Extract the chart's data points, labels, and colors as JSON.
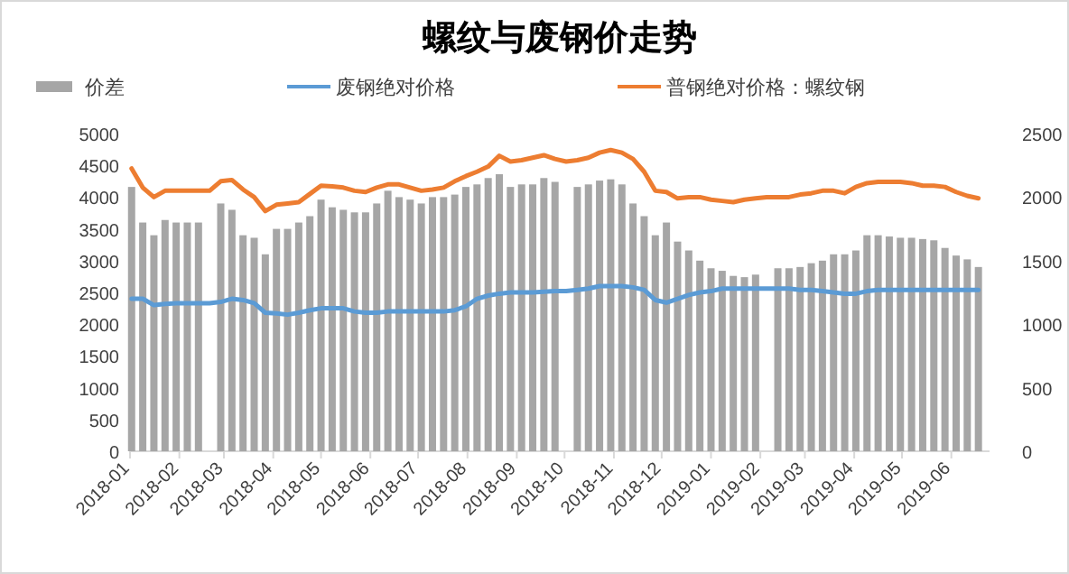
{
  "chart_data": {
    "type": "bar",
    "title": "螺纹与废钢价走势",
    "x": [
      "2018-01-02",
      "2018-01-09",
      "2018-01-16",
      "2018-01-23",
      "2018-01-30",
      "2018-02-06",
      "2018-02-13",
      "2018-02-20",
      "2018-02-27",
      "2018-03-06",
      "2018-03-13",
      "2018-03-20",
      "2018-03-27",
      "2018-04-03",
      "2018-04-10",
      "2018-04-17",
      "2018-04-24",
      "2018-05-01",
      "2018-05-08",
      "2018-05-15",
      "2018-05-22",
      "2018-05-29",
      "2018-06-05",
      "2018-06-12",
      "2018-06-19",
      "2018-06-26",
      "2018-07-03",
      "2018-07-10",
      "2018-07-17",
      "2018-07-24",
      "2018-07-31",
      "2018-08-07",
      "2018-08-14",
      "2018-08-21",
      "2018-08-28",
      "2018-09-04",
      "2018-09-11",
      "2018-09-18",
      "2018-09-25",
      "2018-10-02",
      "2018-10-09",
      "2018-10-16",
      "2018-10-23",
      "2018-10-30",
      "2018-11-06",
      "2018-11-13",
      "2018-11-20",
      "2018-11-27",
      "2018-12-04",
      "2018-12-11",
      "2018-12-18",
      "2018-12-25",
      "2019-01-01",
      "2019-01-08",
      "2019-01-15",
      "2019-01-22",
      "2019-01-29",
      "2019-02-05",
      "2019-02-12",
      "2019-02-19",
      "2019-02-26",
      "2019-03-05",
      "2019-03-12",
      "2019-03-19",
      "2019-03-26",
      "2019-04-02",
      "2019-04-09",
      "2019-04-16",
      "2019-04-23",
      "2019-04-30",
      "2019-05-07",
      "2019-05-14",
      "2019-05-21",
      "2019-05-28",
      "2019-06-04",
      "2019-06-11",
      "2019-06-18"
    ],
    "series": [
      {
        "name": "价差",
        "axis": "y2",
        "color": "#a6a6a6",
        "values": [
          2080,
          1800,
          1700,
          1820,
          1800,
          1800,
          1800,
          null,
          1950,
          1900,
          1700,
          1680,
          1550,
          1750,
          1750,
          1800,
          1850,
          1980,
          1920,
          1900,
          1880,
          1880,
          1950,
          2050,
          2000,
          1980,
          1950,
          2000,
          2000,
          2020,
          2080,
          2100,
          2150,
          2180,
          2080,
          2100,
          2100,
          2150,
          2120,
          null,
          2080,
          2100,
          2130,
          2140,
          2100,
          1950,
          1850,
          1700,
          1800,
          1650,
          1580,
          1500,
          1440,
          1420,
          1380,
          1370,
          1390,
          null,
          1440,
          1440,
          1450,
          1480,
          1500,
          1550,
          1550,
          1580,
          1700,
          1700,
          1690,
          1680,
          1680,
          1670,
          1660,
          1600,
          1540,
          1510,
          1450
        ]
      },
      {
        "name": "废钢绝对价格",
        "type": "line",
        "color": "#5b9bd5",
        "values": [
          2400,
          2400,
          2300,
          2320,
          2330,
          2330,
          2330,
          2330,
          2350,
          2400,
          2380,
          2330,
          2180,
          2170,
          2150,
          2180,
          2220,
          2250,
          2250,
          2250,
          2200,
          2180,
          2180,
          2200,
          2200,
          2200,
          2200,
          2200,
          2200,
          2220,
          2280,
          2400,
          2450,
          2480,
          2500,
          2500,
          2500,
          2510,
          2520,
          2520,
          2540,
          2560,
          2600,
          2600,
          2600,
          2580,
          2540,
          2380,
          2340,
          2400,
          2460,
          2500,
          2520,
          2560,
          2560,
          2560,
          2560,
          2560,
          2560,
          2560,
          2540,
          2540,
          2520,
          2500,
          2480,
          2480,
          2520,
          2540,
          2540,
          2540,
          2540,
          2540,
          2540,
          2540,
          2540,
          2540,
          2540
        ]
      },
      {
        "name": "普钢绝对价格：螺纹钢",
        "type": "line",
        "color": "#ed7d31",
        "values": [
          4450,
          4150,
          4000,
          4100,
          4100,
          4100,
          4100,
          4100,
          4250,
          4270,
          4120,
          4000,
          3780,
          3880,
          3900,
          3920,
          4050,
          4180,
          4170,
          4150,
          4100,
          4080,
          4150,
          4200,
          4200,
          4150,
          4100,
          4120,
          4150,
          4250,
          4330,
          4400,
          4480,
          4650,
          4560,
          4580,
          4620,
          4660,
          4600,
          4560,
          4580,
          4620,
          4700,
          4740,
          4700,
          4600,
          4400,
          4100,
          4080,
          3980,
          4000,
          4000,
          3960,
          3940,
          3920,
          3960,
          3980,
          4000,
          4000,
          4000,
          4040,
          4060,
          4100,
          4100,
          4060,
          4160,
          4220,
          4240,
          4240,
          4240,
          4220,
          4180,
          4180,
          4160,
          4080,
          4020,
          3980
        ]
      }
    ],
    "xlim": [
      "2018-01-01",
      "2019-06-25"
    ],
    "xticks": [
      {
        "value": "2018-01-01",
        "label": "2018-01"
      },
      {
        "value": "2018-02-01",
        "label": "2018-02"
      },
      {
        "value": "2018-03-01",
        "label": "2018-03"
      },
      {
        "value": "2018-04-01",
        "label": "2018-04"
      },
      {
        "value": "2018-05-01",
        "label": "2018-05"
      },
      {
        "value": "2018-06-01",
        "label": "2018-06"
      },
      {
        "value": "2018-07-01",
        "label": "2018-07"
      },
      {
        "value": "2018-08-01",
        "label": "2018-08"
      },
      {
        "value": "2018-09-01",
        "label": "2018-09"
      },
      {
        "value": "2018-10-01",
        "label": "2018-10"
      },
      {
        "value": "2018-11-01",
        "label": "2018-11"
      },
      {
        "value": "2018-12-01",
        "label": "2018-12"
      },
      {
        "value": "2019-01-01",
        "label": "2019-01"
      },
      {
        "value": "2019-02-01",
        "label": "2019-02"
      },
      {
        "value": "2019-03-01",
        "label": "2019-03"
      },
      {
        "value": "2019-04-01",
        "label": "2019-04"
      },
      {
        "value": "2019-05-01",
        "label": "2019-05"
      },
      {
        "value": "2019-06-01",
        "label": "2019-06"
      }
    ],
    "ylim": [
      0,
      5000
    ],
    "yticks": [
      0,
      500,
      1000,
      1500,
      2000,
      2500,
      3000,
      3500,
      4000,
      4500,
      5000
    ],
    "y2lim": [
      0,
      2500
    ],
    "y2ticks": [
      0,
      500,
      1000,
      1500,
      2000,
      2500
    ],
    "legend": "top",
    "grid": false
  }
}
